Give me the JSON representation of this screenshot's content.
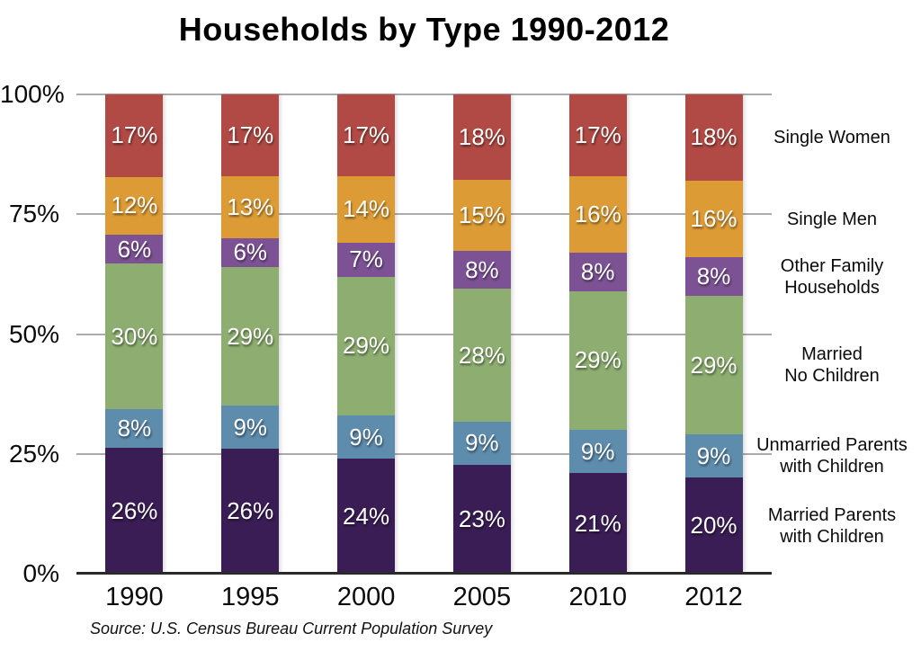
{
  "chart_data": {
    "type": "bar",
    "variant": "stacked-100-percent",
    "title": "Households by Type 1990-2012",
    "source": "Source: U.S. Census Bureau Current Population Survey",
    "categories": [
      "1990",
      "1995",
      "2000",
      "2005",
      "2010",
      "2012"
    ],
    "value_suffix": "%",
    "ylim": [
      0,
      100
    ],
    "grid": true,
    "legend_position": "right",
    "yticks": [
      {
        "label": "100%",
        "value": 100
      },
      {
        "label": "75%",
        "value": 75
      },
      {
        "label": "50%",
        "value": 50
      },
      {
        "label": "25%",
        "value": 25
      },
      {
        "label": "0%",
        "value": 0
      }
    ],
    "series": [
      {
        "name": "Married Parents with Children",
        "legend_lines": [
          "Married Parents",
          "with Children"
        ],
        "color": "#3A1D55",
        "values": [
          26,
          26,
          24,
          23,
          21,
          20
        ]
      },
      {
        "name": "Unmarried Parents with Children",
        "legend_lines": [
          "Unmarried Parents",
          "with Children"
        ],
        "color": "#5E8CAD",
        "values": [
          8,
          9,
          9,
          9,
          9,
          9
        ]
      },
      {
        "name": "Married No Children",
        "legend_lines": [
          "Married",
          "No Children"
        ],
        "color": "#8DAE70",
        "values": [
          30,
          29,
          29,
          28,
          29,
          29
        ]
      },
      {
        "name": "Other Family Households",
        "legend_lines": [
          "Other Family",
          "Households"
        ],
        "color": "#7C5295",
        "values": [
          6,
          6,
          7,
          8,
          8,
          8
        ]
      },
      {
        "name": "Single Men",
        "legend_lines": [
          "Single Men"
        ],
        "color": "#DC9B35",
        "values": [
          12,
          13,
          14,
          15,
          16,
          16
        ]
      },
      {
        "name": "Single Women",
        "legend_lines": [
          "Single Women"
        ],
        "color": "#B14A44",
        "values": [
          17,
          17,
          17,
          18,
          17,
          18
        ]
      }
    ]
  }
}
